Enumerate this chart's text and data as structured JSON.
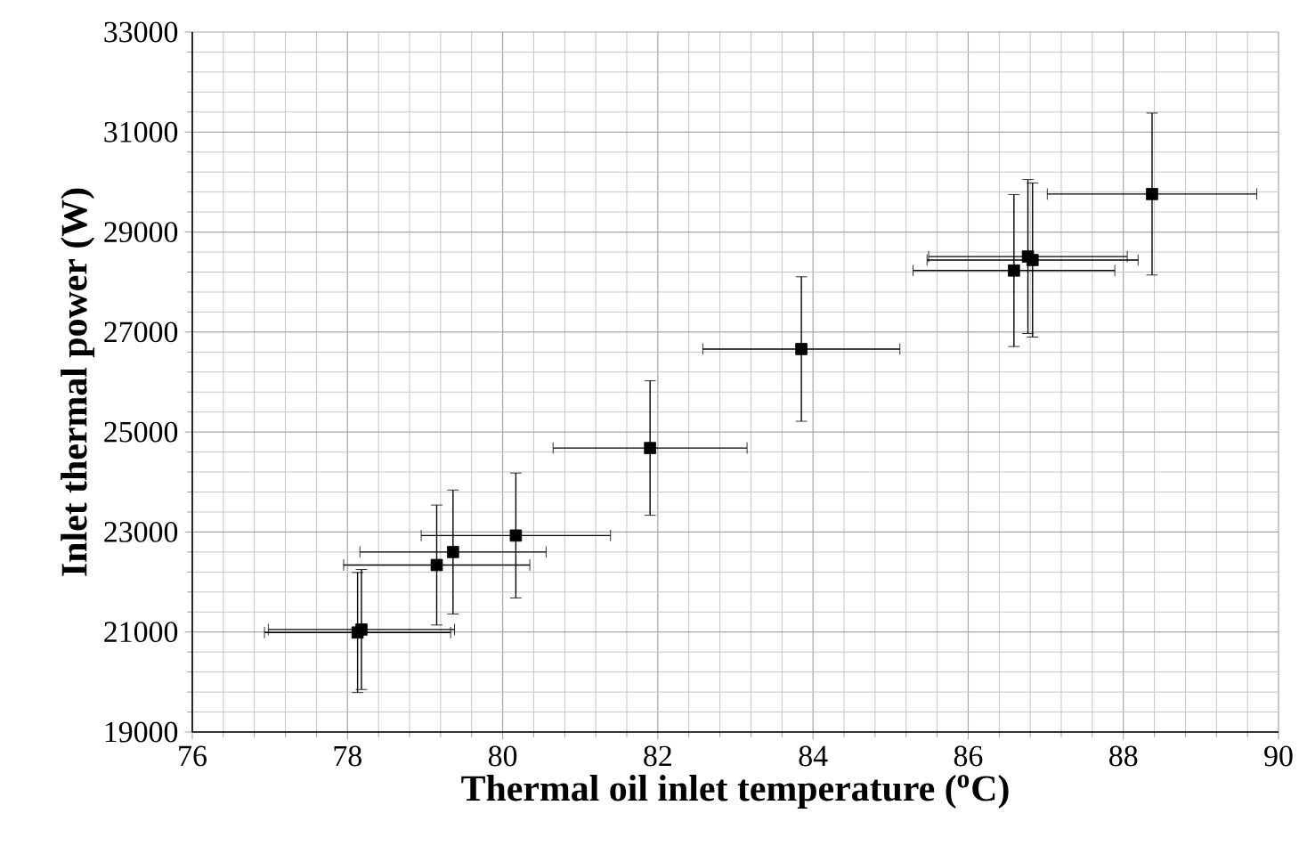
{
  "chart_data": {
    "type": "scatter",
    "xlabel": "Thermal oil inlet temperature ($^{o}$C)",
    "ylabel": "Inlet thermal power (W)",
    "x": [
      78.13,
      78.18,
      79.15,
      79.36,
      80.17,
      81.9,
      83.85,
      86.59,
      86.77,
      86.83,
      88.37
    ],
    "values": [
      20990,
      21050,
      22340,
      22600,
      22930,
      24680,
      26660,
      28230,
      28510,
      28440,
      29760
    ],
    "xerrors": [
      1.2,
      1.2,
      1.2,
      1.2,
      1.22,
      1.25,
      1.27,
      1.3,
      1.28,
      1.36,
      1.35
    ],
    "errors": [
      1200,
      1200,
      1200,
      1240,
      1250,
      1345,
      1445,
      1520,
      1540,
      1540,
      1620
    ],
    "color": "#000000",
    "marker": "square",
    "grid": true,
    "xlim": [
      76,
      90
    ],
    "xticks": [
      76,
      78,
      80,
      82,
      84,
      86,
      88,
      90
    ],
    "ylim": [
      19000,
      33000
    ],
    "yticks": [
      19000,
      21000,
      23000,
      25000,
      27000,
      29000,
      31000,
      33000
    ]
  }
}
